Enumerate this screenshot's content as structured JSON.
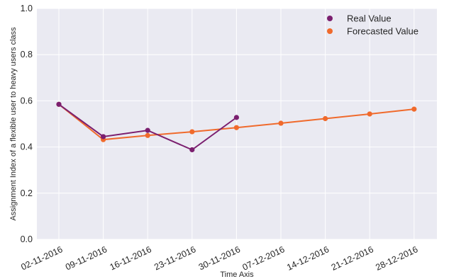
{
  "chart_data": {
    "type": "line",
    "title": "",
    "xlabel": "Time Axis",
    "ylabel": "Assignment Index of a flexible user to heavy users class",
    "categories": [
      "02-11-2016",
      "09-11-2016",
      "16-11-2016",
      "23-11-2016",
      "30-11-2016",
      "07-12-2016",
      "14-12-2016",
      "21-12-2016",
      "28-12-2016"
    ],
    "ylim": [
      0.0,
      1.0
    ],
    "yticks": [
      "0.0",
      "0.2",
      "0.4",
      "0.6",
      "0.8",
      "1.0"
    ],
    "grid": true,
    "legend_position": "top-right",
    "series": [
      {
        "name": "Real Value",
        "color": "#7b1f6f",
        "values": [
          0.585,
          0.445,
          0.472,
          0.388,
          0.528,
          null,
          null,
          null,
          null
        ]
      },
      {
        "name": "Forecasted Value",
        "color": "#f06a2c",
        "values": [
          0.585,
          0.432,
          0.45,
          0.466,
          0.484,
          0.503,
          0.523,
          0.543,
          0.564
        ]
      }
    ]
  }
}
